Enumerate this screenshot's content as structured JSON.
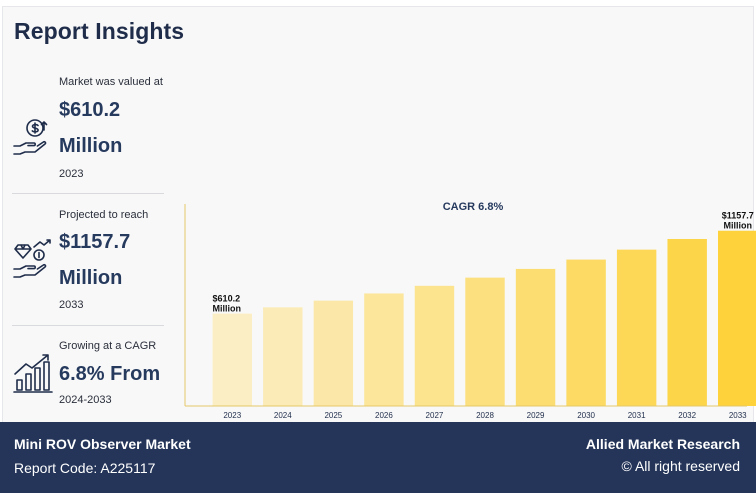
{
  "header": {
    "title": "Report Insights"
  },
  "stats": [
    {
      "caption": "Market was valued at",
      "value": "$610.2",
      "unit": "Million",
      "year": "2023",
      "icon": "money-bag-hand-icon"
    },
    {
      "caption": "Projected to reach",
      "value": "$1157.7",
      "unit": "Million",
      "year": "2033",
      "icon": "diamond-hand-icon"
    },
    {
      "caption": "Growing at a CAGR",
      "value": "6.8% From",
      "year": "2024-2033",
      "icon": "growth-bars-icon"
    }
  ],
  "chart_data": {
    "type": "bar",
    "title": "CAGR 6.8%",
    "categories": [
      "2023",
      "2024",
      "2025",
      "2026",
      "2027",
      "2028",
      "2029",
      "2030",
      "2031",
      "2032",
      "2033"
    ],
    "values": [
      610.2,
      651.7,
      696.0,
      743.4,
      793.9,
      847.9,
      905.5,
      967.1,
      1032.9,
      1103.1,
      1157.7
    ],
    "data_labels": [
      {
        "index": 0,
        "line1": "$610.2",
        "line2": "Million"
      },
      {
        "index": 10,
        "line1": "$1157.7",
        "line2": "Million"
      }
    ],
    "colors": {
      "start": "#fbeec4",
      "end": "#fdd23a"
    },
    "xlabel": "",
    "ylabel": "",
    "grid": false,
    "legend": "none"
  },
  "footer": {
    "market": "Mini ROV Observer Market",
    "code": "Report Code: A225117",
    "brand": "Allied Market Research",
    "rights": "© All right reserved"
  }
}
